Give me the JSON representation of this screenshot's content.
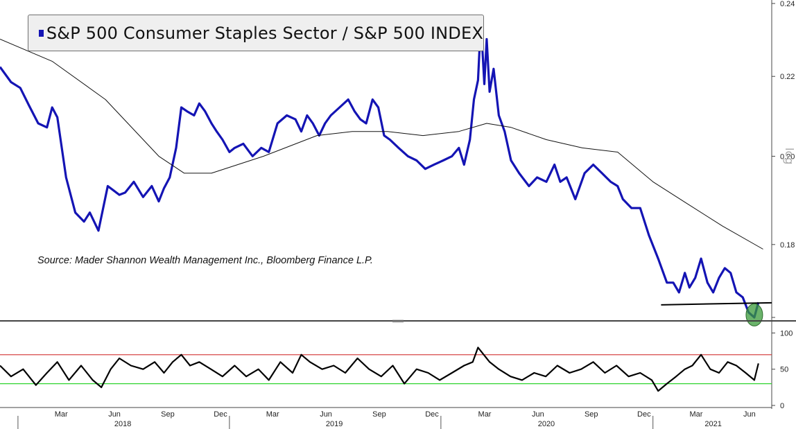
{
  "legend": {
    "label": "S&P 500 Consumer Staples Sector / S&P 500 INDEX"
  },
  "source_note": "Source: Mader Shannon Wealth Management Inc., Bloomberg Finance L.P.",
  "scale_label": "log",
  "colors": {
    "ratio": "#1414b4",
    "ma": "#111111",
    "osc": "#000000",
    "overbought": "#d23030",
    "oversold": "#2ed42e",
    "highlight": "#3a9a3a"
  },
  "chart_data": [
    {
      "type": "line",
      "title": "S&P 500 Consumer Staples Sector / S&P 500 INDEX",
      "y_scale": "log",
      "ylim": [
        0.165,
        0.241
      ],
      "y_ticks": [
        0.18,
        0.2,
        0.22,
        0.24
      ],
      "y_tick_labels": [
        "0.18",
        "0.20",
        "0.22",
        "0.24"
      ],
      "x_range": [
        "2017-12-01",
        "2021-07-25"
      ],
      "series": [
        {
          "style": "thick",
          "x": [
            "2017-12-01",
            "2017-12-20",
            "2018-01-05",
            "2018-01-20",
            "2018-02-05",
            "2018-02-20",
            "2018-03-01",
            "2018-03-10",
            "2018-03-25",
            "2018-04-10",
            "2018-04-25",
            "2018-05-05",
            "2018-05-20",
            "2018-06-05",
            "2018-06-15",
            "2018-06-25",
            "2018-07-05",
            "2018-07-20",
            "2018-08-05",
            "2018-08-20",
            "2018-09-01",
            "2018-09-10",
            "2018-09-20",
            "2018-10-01",
            "2018-10-10",
            "2018-10-20",
            "2018-11-01",
            "2018-11-10",
            "2018-11-20",
            "2018-12-01",
            "2018-12-10",
            "2018-12-20",
            "2019-01-01",
            "2019-01-10",
            "2019-01-25",
            "2019-02-10",
            "2019-02-25",
            "2019-03-10",
            "2019-03-25",
            "2019-04-10",
            "2019-04-25",
            "2019-05-05",
            "2019-05-15",
            "2019-05-25",
            "2019-06-05",
            "2019-06-15",
            "2019-06-25",
            "2019-07-10",
            "2019-07-25",
            "2019-08-05",
            "2019-08-15",
            "2019-08-25",
            "2019-09-05",
            "2019-09-15",
            "2019-09-25",
            "2019-10-05",
            "2019-10-20",
            "2019-11-05",
            "2019-11-20",
            "2019-12-05",
            "2019-12-20",
            "2020-01-05",
            "2020-01-20",
            "2020-02-01",
            "2020-02-10",
            "2020-02-20",
            "2020-02-27",
            "2020-03-05",
            "2020-03-10",
            "2020-03-16",
            "2020-03-20",
            "2020-03-25",
            "2020-04-01",
            "2020-04-10",
            "2020-04-20",
            "2020-05-01",
            "2020-05-15",
            "2020-06-01",
            "2020-06-15",
            "2020-07-01",
            "2020-07-15",
            "2020-07-25",
            "2020-08-05",
            "2020-08-20",
            "2020-09-05",
            "2020-09-20",
            "2020-10-05",
            "2020-10-20",
            "2020-11-01",
            "2020-11-10",
            "2020-11-25",
            "2020-12-10",
            "2020-12-25",
            "2021-01-10",
            "2021-01-25",
            "2021-02-05",
            "2021-02-15",
            "2021-02-25",
            "2021-03-05",
            "2021-03-15",
            "2021-03-25",
            "2021-04-05",
            "2021-04-15",
            "2021-04-25",
            "2021-05-05",
            "2021-05-15",
            "2021-05-25",
            "2021-06-05",
            "2021-06-15",
            "2021-06-25",
            "2021-07-02"
          ],
          "values": [
            0.2225,
            0.2185,
            0.217,
            0.2125,
            0.208,
            0.207,
            0.212,
            0.2095,
            0.195,
            0.187,
            0.185,
            0.187,
            0.183,
            0.193,
            0.192,
            0.191,
            0.1915,
            0.194,
            0.1905,
            0.193,
            0.1895,
            0.1925,
            0.195,
            0.202,
            0.212,
            0.211,
            0.21,
            0.213,
            0.211,
            0.208,
            0.206,
            0.204,
            0.201,
            0.202,
            0.203,
            0.2,
            0.202,
            0.201,
            0.208,
            0.21,
            0.209,
            0.206,
            0.21,
            0.208,
            0.205,
            0.208,
            0.21,
            0.212,
            0.214,
            0.211,
            0.209,
            0.208,
            0.214,
            0.212,
            0.205,
            0.204,
            0.202,
            0.2,
            0.199,
            0.197,
            0.198,
            0.199,
            0.2,
            0.202,
            0.198,
            0.204,
            0.214,
            0.219,
            0.235,
            0.218,
            0.23,
            0.216,
            0.222,
            0.21,
            0.206,
            0.199,
            0.196,
            0.193,
            0.195,
            0.194,
            0.198,
            0.194,
            0.195,
            0.19,
            0.196,
            0.198,
            0.196,
            0.194,
            0.193,
            0.19,
            0.188,
            0.188,
            0.182,
            0.177,
            0.172,
            0.172,
            0.17,
            0.174,
            0.171,
            0.173,
            0.177,
            0.172,
            0.17,
            0.173,
            0.175,
            0.174,
            0.17,
            0.169,
            0.166,
            0.165,
            0.168
          ]
        },
        {
          "style": "thin",
          "x": [
            "2017-12-01",
            "2018-03-01",
            "2018-06-01",
            "2018-09-01",
            "2018-10-15",
            "2018-12-01",
            "2019-01-15",
            "2019-03-01",
            "2019-06-01",
            "2019-08-01",
            "2019-10-01",
            "2019-12-01",
            "2020-02-01",
            "2020-03-20",
            "2020-05-01",
            "2020-07-01",
            "2020-09-01",
            "2020-11-01",
            "2021-01-01",
            "2021-03-01",
            "2021-05-01",
            "2021-07-10"
          ],
          "values": [
            0.23,
            0.224,
            0.214,
            0.2,
            0.196,
            0.196,
            0.198,
            0.2,
            0.205,
            0.206,
            0.206,
            0.205,
            0.206,
            0.208,
            0.207,
            0.204,
            0.202,
            0.201,
            0.194,
            0.189,
            0.184,
            0.179
          ]
        }
      ],
      "annotations": [
        {
          "type": "support-line",
          "from": "2021-01-15",
          "to": "2021-07-25",
          "value": 0.1675
        },
        {
          "type": "circle",
          "date": "2021-06-25",
          "value": 0.1655
        }
      ]
    },
    {
      "type": "line",
      "ylim": [
        0,
        110
      ],
      "y_ticks": [
        0,
        50,
        100
      ],
      "y_tick_labels": [
        "0",
        "50",
        "100"
      ],
      "reference_lines": [
        70,
        30
      ],
      "series": [
        {
          "x": [
            "2017-12-01",
            "2017-12-20",
            "2018-01-10",
            "2018-02-01",
            "2018-02-20",
            "2018-03-10",
            "2018-03-30",
            "2018-04-20",
            "2018-05-10",
            "2018-05-25",
            "2018-06-10",
            "2018-06-25",
            "2018-07-15",
            "2018-08-05",
            "2018-08-25",
            "2018-09-10",
            "2018-09-25",
            "2018-10-10",
            "2018-10-25",
            "2018-11-10",
            "2018-11-30",
            "2018-12-20",
            "2019-01-10",
            "2019-01-30",
            "2019-02-20",
            "2019-03-10",
            "2019-03-30",
            "2019-04-20",
            "2019-05-05",
            "2019-05-20",
            "2019-06-10",
            "2019-06-30",
            "2019-07-20",
            "2019-08-10",
            "2019-08-30",
            "2019-09-20",
            "2019-10-10",
            "2019-10-30",
            "2019-11-20",
            "2019-12-10",
            "2019-12-30",
            "2020-01-20",
            "2020-02-10",
            "2020-02-25",
            "2020-03-05",
            "2020-03-15",
            "2020-03-25",
            "2020-04-10",
            "2020-04-30",
            "2020-05-20",
            "2020-06-10",
            "2020-06-30",
            "2020-07-20",
            "2020-08-10",
            "2020-08-30",
            "2020-09-20",
            "2020-10-10",
            "2020-10-30",
            "2020-11-20",
            "2020-12-10",
            "2020-12-30",
            "2021-01-10",
            "2021-01-25",
            "2021-02-10",
            "2021-02-25",
            "2021-03-10",
            "2021-03-25",
            "2021-04-10",
            "2021-04-25",
            "2021-05-10",
            "2021-05-25",
            "2021-06-10",
            "2021-06-25",
            "2021-07-02"
          ],
          "values": [
            55,
            40,
            50,
            28,
            45,
            60,
            35,
            55,
            35,
            25,
            50,
            65,
            55,
            50,
            60,
            45,
            60,
            70,
            55,
            60,
            50,
            40,
            55,
            40,
            50,
            35,
            60,
            45,
            70,
            60,
            50,
            55,
            45,
            65,
            50,
            40,
            55,
            30,
            50,
            45,
            35,
            45,
            55,
            60,
            80,
            70,
            60,
            50,
            40,
            35,
            45,
            40,
            55,
            45,
            50,
            60,
            45,
            55,
            40,
            45,
            35,
            20,
            30,
            40,
            50,
            55,
            70,
            50,
            45,
            60,
            55,
            45,
            35,
            58
          ]
        }
      ]
    }
  ],
  "x_axis": {
    "month_labels": [
      "Mar",
      "Jun",
      "Sep",
      "Dec",
      "Mar",
      "Jun",
      "Sep",
      "Dec",
      "Mar",
      "Jun",
      "Sep",
      "Dec",
      "Mar",
      "Jun"
    ],
    "year_labels": [
      "2018",
      "2019",
      "2020",
      "2021"
    ]
  }
}
